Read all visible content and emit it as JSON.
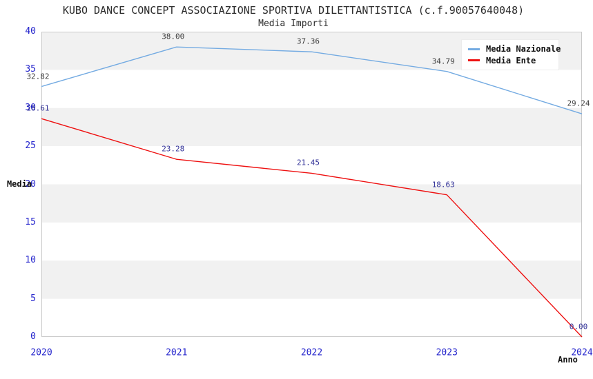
{
  "title": "KUBO DANCE CONCEPT ASSOCIAZIONE SPORTIVA DILETTANTISTICA (c.f.90057640048)",
  "subtitle": "Media Importi",
  "chart_data": {
    "type": "line",
    "categories": [
      "2020",
      "2021",
      "2022",
      "2023",
      "2024"
    ],
    "series": [
      {
        "name": "Media Nazionale",
        "values": [
          32.82,
          38.0,
          37.36,
          34.79,
          29.24
        ],
        "labels": [
          "32.82",
          "38.00",
          "37.36",
          "34.79",
          "29.24"
        ],
        "color": "#74abe2",
        "label_color": "#3d3d3d"
      },
      {
        "name": "Media Ente",
        "values": [
          28.61,
          23.28,
          21.45,
          18.63,
          0.0
        ],
        "labels": [
          "28.61",
          "23.28",
          "21.45",
          "18.63",
          "0.00"
        ],
        "color": "#ee1111",
        "label_color": "#333399"
      }
    ],
    "xlabel": "Anno",
    "ylabel": "Media",
    "ylim": [
      0,
      40
    ],
    "ytick_step": 5,
    "yticks": [
      "0",
      "5",
      "10",
      "15",
      "20",
      "25",
      "30",
      "35",
      "40"
    ],
    "grid": "alternating-horizontal-bands",
    "legend_position": "top-right",
    "colors": {
      "tick_label": "#2323cc",
      "band_gray": "#f1f1f1",
      "plot_border": "#c9c9c9",
      "axis_title": "#111111",
      "title_text": "#2b2b2b"
    }
  }
}
